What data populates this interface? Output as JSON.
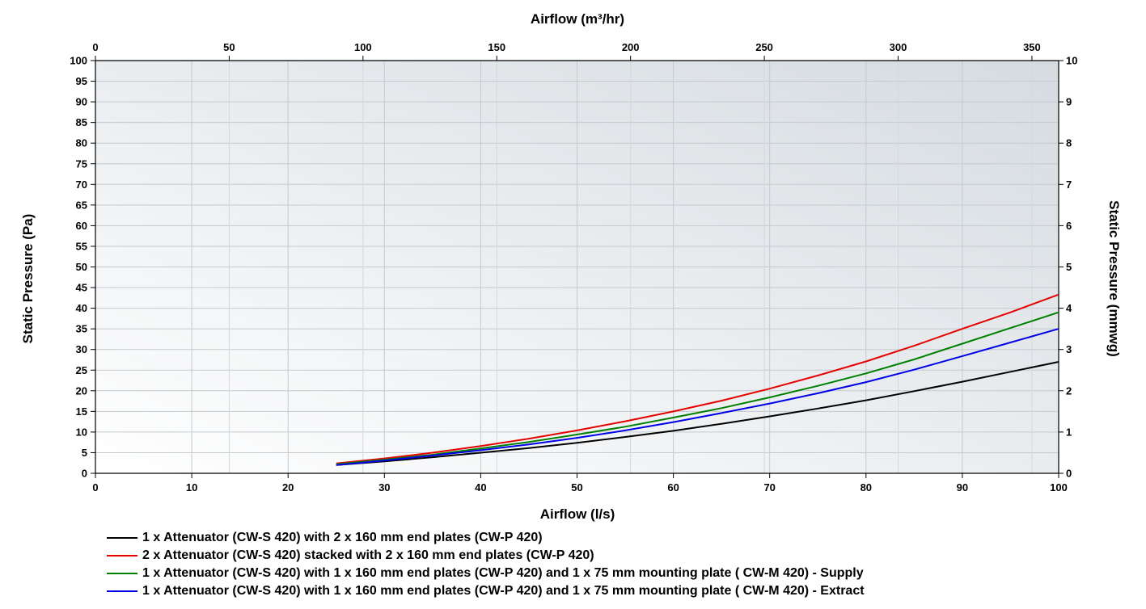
{
  "chart_data": {
    "type": "line",
    "x_top_label": "Airflow (m³/hr)",
    "x_bottom_label": "Airflow (l/s)",
    "y_left_label": "Static Pressure (Pa)",
    "y_right_label": "Static Pressure (mmwg)",
    "x_bottom_range": [
      0,
      100
    ],
    "x_bottom_ticks": [
      0,
      10,
      20,
      30,
      40,
      50,
      60,
      70,
      80,
      90,
      100
    ],
    "x_top_range": [
      0,
      360
    ],
    "x_top_ticks": [
      0,
      50,
      100,
      150,
      200,
      250,
      300,
      350
    ],
    "y_left_range": [
      0,
      100
    ],
    "y_left_ticks": [
      0,
      5,
      10,
      15,
      20,
      25,
      30,
      35,
      40,
      45,
      50,
      55,
      60,
      65,
      70,
      75,
      80,
      85,
      90,
      95,
      100
    ],
    "y_right_range": [
      0,
      10
    ],
    "y_right_ticks": [
      0,
      1,
      2,
      3,
      4,
      5,
      6,
      7,
      8,
      9,
      10
    ],
    "grid": true,
    "legend_position": "bottom",
    "series": [
      {
        "name": "1 x Attenuator (CW-S 420) with 2 x 160 mm end plates (CW-P 420)",
        "color": "#000000",
        "x": [
          25,
          30,
          35,
          40,
          45,
          50,
          55,
          60,
          65,
          70,
          75,
          80,
          85,
          90,
          95,
          100
        ],
        "y": [
          2.0,
          2.9,
          3.9,
          5.0,
          6.1,
          7.4,
          8.8,
          10.3,
          12.0,
          13.8,
          15.7,
          17.7,
          19.9,
          22.2,
          24.6,
          27.0
        ]
      },
      {
        "name": "2 x Attenuator (CW-S 420) stacked with 2 x 160 mm end plates (CW-P 420)",
        "color": "#e60000",
        "x": [
          25,
          30,
          35,
          40,
          45,
          50,
          55,
          60,
          65,
          70,
          75,
          80,
          85,
          90,
          95,
          100
        ],
        "y": [
          2.4,
          3.6,
          5.0,
          6.6,
          8.4,
          10.4,
          12.6,
          15.0,
          17.6,
          20.5,
          23.7,
          27.1,
          30.9,
          35.0,
          39.0,
          43.3
        ]
      },
      {
        "name": "1 x Attenuator (CW-S 420) with 1 x 160 mm end plates (CW-P 420) and 1 x 75 mm mounting plate ( CW-M 420) - Supply",
        "color": "#008000",
        "x": [
          25,
          30,
          35,
          40,
          45,
          50,
          55,
          60,
          65,
          70,
          75,
          80,
          85,
          90,
          95,
          100
        ],
        "y": [
          2.2,
          3.3,
          4.5,
          6.0,
          7.6,
          9.4,
          11.3,
          13.5,
          15.8,
          18.4,
          21.2,
          24.2,
          27.6,
          31.4,
          35.2,
          39.0
        ]
      },
      {
        "name": "1 x Attenuator (CW-S 420) with 1 x 160 mm end plates (CW-P 420) and 1 x 75 mm mounting plate ( CW-M 420) - Extract",
        "color": "#0000e6",
        "x": [
          25,
          30,
          35,
          40,
          45,
          50,
          55,
          60,
          65,
          70,
          75,
          80,
          85,
          90,
          95,
          100
        ],
        "y": [
          2.0,
          3.1,
          4.3,
          5.6,
          7.0,
          8.6,
          10.4,
          12.4,
          14.6,
          16.9,
          19.4,
          22.1,
          25.1,
          28.4,
          31.7,
          35.0
        ]
      }
    ]
  }
}
